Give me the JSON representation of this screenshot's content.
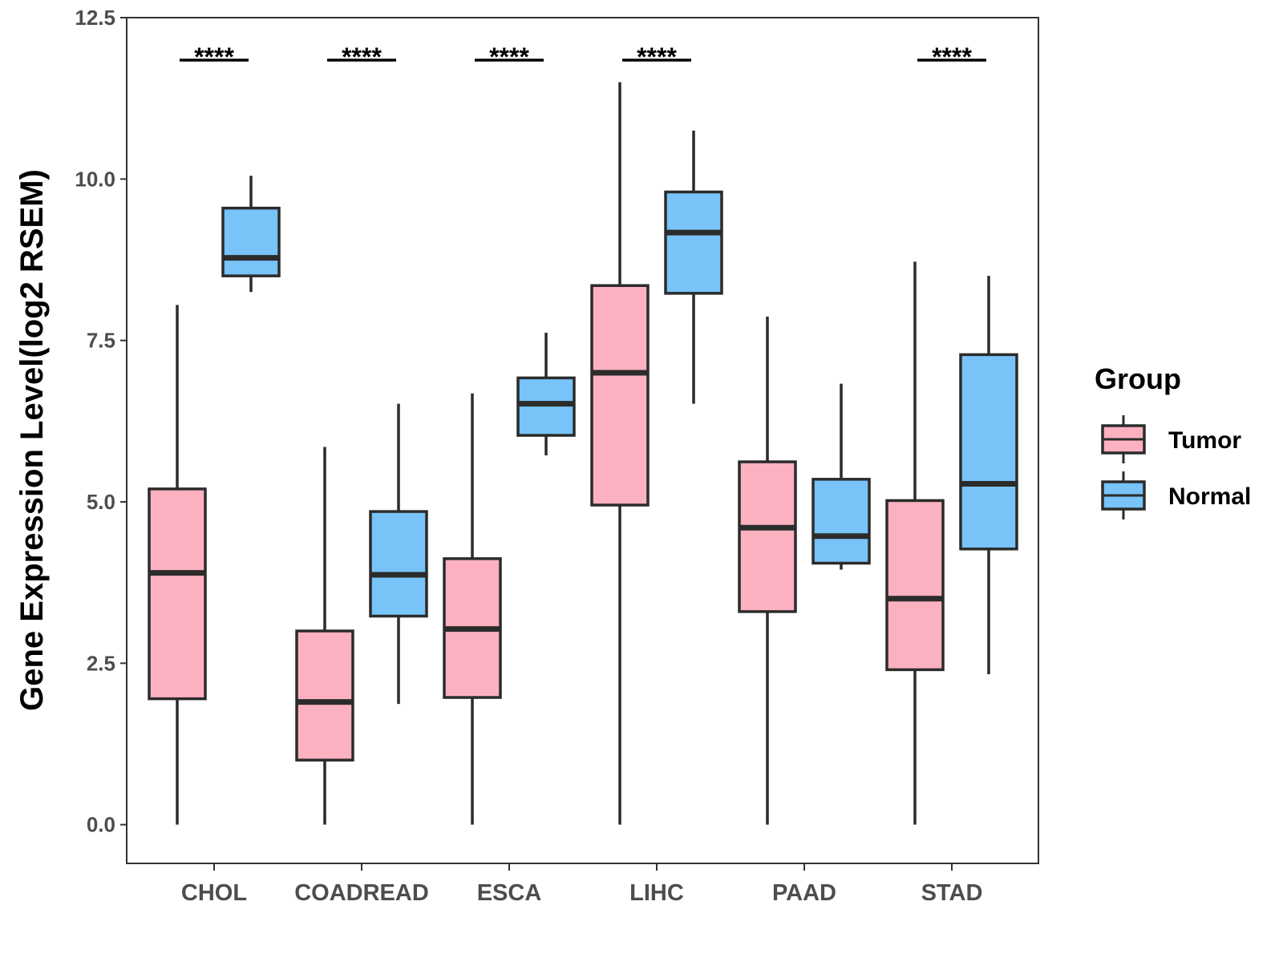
{
  "chart_data": {
    "type": "boxplot",
    "title": "",
    "xlabel": "",
    "ylabel": "Gene Expression Level(log2 RSEM)",
    "ylim": [
      -0.6,
      12.5
    ],
    "yticks": [
      0.0,
      2.5,
      5.0,
      7.5,
      10.0,
      12.5
    ],
    "ytick_labels": [
      "0.0",
      "2.5",
      "5.0",
      "7.5",
      "10.0",
      "12.5"
    ],
    "categories": [
      "CHOL",
      "COADREAD",
      "ESCA",
      "LIHC",
      "PAAD",
      "STAD"
    ],
    "legend": {
      "title": "Group",
      "position": "right",
      "entries": [
        {
          "name": "Tumor",
          "color": "#fbb1c0"
        },
        {
          "name": "Normal",
          "color": "#78c3f8"
        }
      ]
    },
    "series": [
      {
        "name": "Tumor",
        "color": "#fbb1c0",
        "boxes": [
          {
            "category": "CHOL",
            "min": 0.0,
            "q1": 1.95,
            "median": 3.9,
            "q3": 5.2,
            "max": 8.05
          },
          {
            "category": "COADREAD",
            "min": 0.0,
            "q1": 1.0,
            "median": 1.9,
            "q3": 3.0,
            "max": 5.85
          },
          {
            "category": "ESCA",
            "min": 0.0,
            "q1": 1.97,
            "median": 3.03,
            "q3": 4.12,
            "max": 6.68
          },
          {
            "category": "LIHC",
            "min": 0.0,
            "q1": 4.95,
            "median": 7.0,
            "q3": 8.35,
            "max": 11.5
          },
          {
            "category": "PAAD",
            "min": 0.0,
            "q1": 3.3,
            "median": 4.6,
            "q3": 5.62,
            "max": 7.87
          },
          {
            "category": "STAD",
            "min": 0.0,
            "q1": 2.4,
            "median": 3.5,
            "q3": 5.02,
            "max": 8.72
          }
        ]
      },
      {
        "name": "Normal",
        "color": "#78c3f8",
        "boxes": [
          {
            "category": "CHOL",
            "min": 8.25,
            "q1": 8.5,
            "median": 8.78,
            "q3": 9.55,
            "max": 10.05
          },
          {
            "category": "COADREAD",
            "min": 1.87,
            "q1": 3.23,
            "median": 3.87,
            "q3": 4.85,
            "max": 6.52
          },
          {
            "category": "ESCA",
            "min": 5.72,
            "q1": 6.03,
            "median": 6.52,
            "q3": 6.92,
            "max": 7.62
          },
          {
            "category": "LIHC",
            "min": 6.52,
            "q1": 8.23,
            "median": 9.17,
            "q3": 9.8,
            "max": 10.75
          },
          {
            "category": "PAAD",
            "min": 3.95,
            "q1": 4.05,
            "median": 4.47,
            "q3": 5.35,
            "max": 6.83
          },
          {
            "category": "STAD",
            "min": 2.33,
            "q1": 4.27,
            "median": 5.28,
            "q3": 7.28,
            "max": 8.5
          }
        ]
      }
    ],
    "annotations": [
      {
        "category": "CHOL",
        "text": "****"
      },
      {
        "category": "COADREAD",
        "text": "****"
      },
      {
        "category": "ESCA",
        "text": "****"
      },
      {
        "category": "LIHC",
        "text": "****"
      },
      {
        "category": "STAD",
        "text": "****"
      }
    ]
  }
}
